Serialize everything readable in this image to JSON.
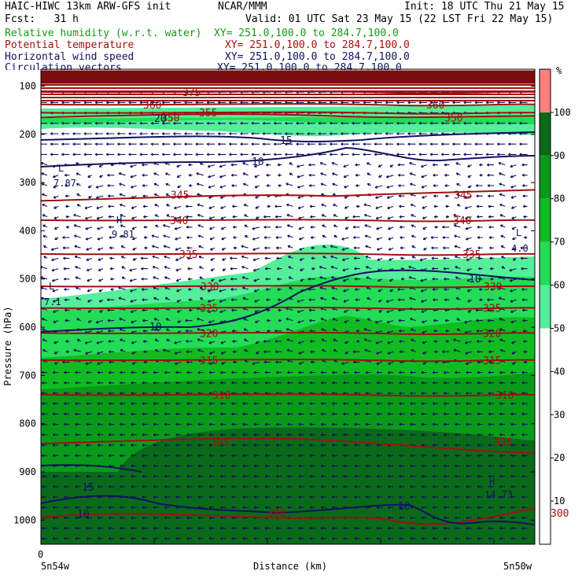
{
  "header": {
    "line1_left": "HAIC-HIWC 13km ARW-GFS init",
    "line1_mid": "NCAR/MMM",
    "line1_right": "Init: 18 UTC Thu 21 May 15",
    "line2_left": "Fcst:   31 h",
    "line2_right": "Valid: 01 UTC Sat 23 May 15 (22 LST Fri 22 May 15)"
  },
  "legend": [
    {
      "name": "Relative humidity (w.r.t. water)",
      "xy": "XY= 251.0,100.0 to 284.7,100.0",
      "color": "#159b15"
    },
    {
      "name": "Potential temperature",
      "xy": "XY= 251.0,100.0 to 284.7,100.0",
      "color": "#a01010"
    },
    {
      "name": "Horizontal wind speed",
      "xy": "XY= 251.0,100.0 to 284.7,100.0",
      "color": "#121260"
    },
    {
      "name": "Circulation vectors",
      "xy": "XY= 251.0,100.0 to 284.7,100.0",
      "color": "#121260"
    }
  ],
  "chart_data": {
    "type": "heatmap",
    "ylabel": "Pressure (hPa)",
    "xlabel": "Distance (km)",
    "x_left_label": "5n54w",
    "x_right_label": "5n50w",
    "x_origin_label": "0",
    "y_ticks": [
      100,
      200,
      300,
      400,
      500,
      600,
      700,
      800,
      900,
      1000
    ],
    "ylim": [
      65,
      1050
    ],
    "colorbar": {
      "unit": "%",
      "ticks": [
        10,
        20,
        30,
        40,
        50,
        60,
        70,
        80,
        90,
        100
      ],
      "bands": [
        {
          "from": 50,
          "to": 60,
          "color": "#55ee99"
        },
        {
          "from": 60,
          "to": 70,
          "color": "#22dd55"
        },
        {
          "from": 70,
          "to": 80,
          "color": "#11bb22"
        },
        {
          "from": 80,
          "to": 90,
          "color": "#0a9a1a"
        },
        {
          "from": 90,
          "to": 100,
          "color": "#0a6a1a"
        },
        {
          "from": 100,
          "to": 110,
          "color": "#ff8080"
        }
      ]
    },
    "theta_contours": [
      {
        "value": 300,
        "p": 985
      },
      {
        "value": 305,
        "p": 838
      },
      {
        "value": 310,
        "p": 740
      },
      {
        "value": 315,
        "p": 668
      },
      {
        "value": 320,
        "p": 612
      },
      {
        "value": 325,
        "p": 560
      },
      {
        "value": 330,
        "p": 515
      },
      {
        "value": 335,
        "p": 448
      },
      {
        "value": 340,
        "p": 378
      },
      {
        "value": 345,
        "p": 325
      },
      {
        "value": 350,
        "p": 165
      },
      {
        "value": 355,
        "p": 155
      },
      {
        "value": 360,
        "p": 138
      },
      {
        "value": 375,
        "p": 112
      }
    ],
    "wind_labels": [
      "10",
      "15",
      "20",
      "10",
      "10",
      "15",
      "10",
      "10"
    ],
    "point_labels": [
      {
        "text": "L",
        "value": "7.87"
      },
      {
        "text": "H",
        "value": "9.81"
      },
      {
        "text": "L",
        "value": "7.1"
      },
      {
        "text": "L",
        "value": "4.0"
      },
      {
        "text": "H",
        "value": "14.73"
      }
    ]
  }
}
